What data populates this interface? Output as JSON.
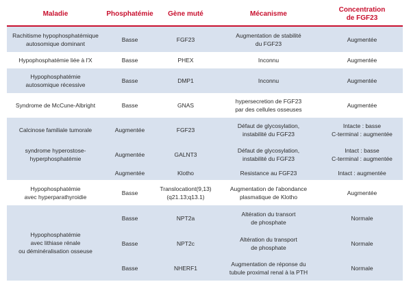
{
  "headers": {
    "maladie": "Maladie",
    "phosphatemie": "Phosphatémie",
    "gene": "Gène muté",
    "mecanisme": "Mécanisme",
    "concentration_1": "Concentration",
    "concentration_2": "de FGF23"
  },
  "rows": [
    {
      "maladie": [
        "Rachitisme hypophosphatémique",
        "autosomique dominant"
      ],
      "phosphatemie": "Basse",
      "gene": "FGF23",
      "mecanisme": [
        "Augmentation de stabilité",
        "du FGF23"
      ],
      "concentration": [
        "Augmentée"
      ]
    },
    {
      "maladie": [
        "Hypophosphatémie liée à l'X"
      ],
      "phosphatemie": "Basse",
      "gene": "PHEX",
      "mecanisme": [
        "Inconnu"
      ],
      "concentration": [
        "Augmentée"
      ]
    },
    {
      "maladie": [
        "Hypophosphatémie",
        "autosomique récessive"
      ],
      "phosphatemie": "Basse",
      "gene": "DMP1",
      "mecanisme": [
        "Inconnu"
      ],
      "concentration": [
        "Augmentée"
      ]
    },
    {
      "maladie": [
        "Syndrome de McCune-Albright"
      ],
      "phosphatemie": "Basse",
      "gene": "GNAS",
      "mecanisme": [
        "hypersecretion de FGF23",
        "par des cellules osseuses"
      ],
      "concentration": [
        "Augmentée"
      ]
    },
    {
      "maladie": [
        "Calcinose familiale tumorale"
      ],
      "phosphatemie": "Augmentée",
      "gene": "FGF23",
      "mecanisme": [
        "Défaut de glycosylation,",
        "instabilité du FGF23"
      ],
      "concentration": [
        "Intacte : basse",
        "C-terminal : augmentée"
      ]
    },
    {
      "maladie": [
        "syndrome hyperostose-",
        "hyperphosphatémie"
      ],
      "phosphatemie": "Augmentée",
      "gene": "GALNT3",
      "mecanisme": [
        "Défaut de glycosylation,",
        "instabilité du FGF23"
      ],
      "concentration": [
        "Intact : basse",
        "C-terminal : augmentée"
      ]
    },
    {
      "phosphatemie": "Augmentée",
      "gene": "Klotho",
      "mecanisme": [
        "Resistance au FGF23"
      ],
      "concentration": [
        "Intact : augmentée"
      ]
    },
    {
      "maladie": [
        "Hypophosphatémie",
        "avec hyperparathyroidie"
      ],
      "phosphatemie": "Basse",
      "gene": "Translocationt(9,13) (q21.13;q13.1)",
      "mecanisme": [
        "Augmentation de l'abondance",
        "plasmatique de Klotho"
      ],
      "concentration": [
        "Augmentée"
      ]
    },
    {
      "maladie": [
        "Hypophosphatémie",
        "avec lithiase rénale",
        "ou déminéralisation osseuse"
      ],
      "phosphatemie": "Basse",
      "gene": "NPT2a",
      "mecanisme": [
        "Altération du transort",
        "de phosphate"
      ],
      "concentration": [
        "Normale"
      ]
    },
    {
      "phosphatemie": "Basse",
      "gene": "NPT2c",
      "mecanisme": [
        "Altération du transport",
        "de phosphate"
      ],
      "concentration": [
        "Normale"
      ]
    },
    {
      "phosphatemie": "Basse",
      "gene": "NHERF1",
      "mecanisme": [
        "Augmentation de réponse du",
        "tubule proximal renal à la PTH"
      ],
      "concentration": [
        "Normale"
      ]
    }
  ]
}
